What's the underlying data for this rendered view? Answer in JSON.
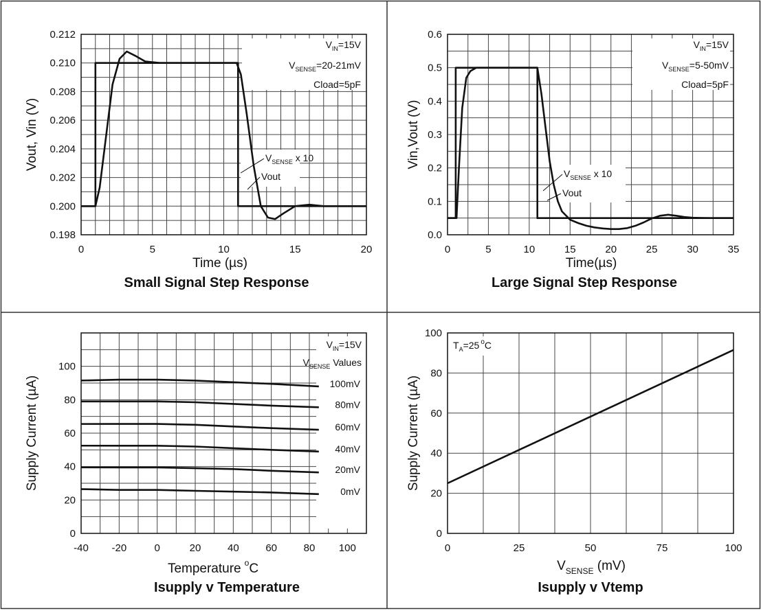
{
  "chart_data": [
    {
      "type": "line",
      "title": "Small Signal Step Response",
      "xlabel": "Time (µs)",
      "ylabel": "Vout, Vin (V)",
      "xlim": [
        0,
        20
      ],
      "ylim": [
        0.198,
        0.212
      ],
      "x_ticks": [
        "0",
        "5",
        "10",
        "15",
        "20"
      ],
      "y_ticks": [
        "0.198",
        "0.200",
        "0.202",
        "0.204",
        "0.206",
        "0.208",
        "0.210",
        "0.212"
      ],
      "grid": true,
      "annotations": [
        {
          "main": "V",
          "sub": "IN",
          "tail": "=15V"
        },
        {
          "main": "V",
          "sub": "SENSE",
          "tail": "=20-21mV"
        },
        {
          "main": "Cload=5pF",
          "sub": "",
          "tail": ""
        }
      ],
      "series_labels": [
        {
          "main": "V",
          "sub": "SENSE",
          "tail": " x 10"
        },
        {
          "main": "Vout",
          "sub": "",
          "tail": ""
        }
      ],
      "series": [
        {
          "name": "VSENSE x 10",
          "x": [
            0,
            1,
            1,
            11,
            11,
            20
          ],
          "y": [
            0.2,
            0.2,
            0.21,
            0.21,
            0.2,
            0.2
          ]
        },
        {
          "name": "Vout",
          "x": [
            0,
            1,
            1.3,
            1.7,
            2.2,
            2.7,
            3.2,
            3.8,
            4.5,
            5.5,
            7,
            9,
            10.9,
            11.2,
            11.6,
            12.1,
            12.6,
            13.1,
            13.6,
            14.2,
            15,
            16,
            17,
            20
          ],
          "y": [
            0.2,
            0.2,
            0.2013,
            0.2045,
            0.2085,
            0.2103,
            0.2108,
            0.2105,
            0.2101,
            0.21,
            0.21,
            0.21,
            0.21,
            0.2092,
            0.2065,
            0.2028,
            0.2,
            0.1992,
            0.1991,
            0.1995,
            0.2,
            0.2001,
            0.2,
            0.2
          ]
        }
      ]
    },
    {
      "type": "line",
      "title": "Large Signal Step Response",
      "xlabel": "Time(µs)",
      "ylabel": "Vin,Vout (V)",
      "xlim": [
        0,
        35
      ],
      "ylim": [
        0,
        0.6
      ],
      "x_ticks": [
        "0",
        "5",
        "10",
        "15",
        "20",
        "25",
        "30",
        "35"
      ],
      "y_ticks": [
        "0.0",
        "0.1",
        "0.2",
        "0.3",
        "0.4",
        "0.5",
        "0.6"
      ],
      "grid": true,
      "annotations": [
        {
          "main": "V",
          "sub": "IN",
          "tail": "=15V"
        },
        {
          "main": "V",
          "sub": "SENSE",
          "tail": "=5-50mV"
        },
        {
          "main": "Cload=5pF",
          "sub": "",
          "tail": ""
        }
      ],
      "series_labels": [
        {
          "main": "V",
          "sub": "SENSE",
          "tail": " x 10"
        },
        {
          "main": "Vout",
          "sub": "",
          "tail": ""
        }
      ],
      "series": [
        {
          "name": "VSENSE x 10",
          "x": [
            0,
            1,
            1,
            11,
            11,
            35
          ],
          "y": [
            0.05,
            0.05,
            0.5,
            0.5,
            0.05,
            0.05
          ]
        },
        {
          "name": "Vout",
          "x": [
            0,
            1.1,
            1.4,
            1.8,
            2.3,
            2.8,
            3.5,
            5,
            8,
            11,
            11.5,
            12,
            12.5,
            13,
            13.5,
            14,
            15,
            16,
            17,
            18,
            19,
            20,
            21,
            22,
            23,
            24,
            25,
            26,
            27,
            28,
            29,
            30,
            32,
            35
          ],
          "y": [
            0.05,
            0.05,
            0.2,
            0.38,
            0.47,
            0.49,
            0.5,
            0.5,
            0.5,
            0.5,
            0.42,
            0.32,
            0.22,
            0.15,
            0.1,
            0.07,
            0.045,
            0.035,
            0.027,
            0.022,
            0.019,
            0.017,
            0.017,
            0.02,
            0.027,
            0.037,
            0.049,
            0.057,
            0.06,
            0.057,
            0.053,
            0.051,
            0.05,
            0.05
          ]
        }
      ]
    },
    {
      "type": "line",
      "title": "Isupply v Temperature",
      "xlabel": "Temperature",
      "xlabel_unit": "C",
      "xlabel_deg": "o",
      "ylabel": "Supply Current (µA)",
      "xlim": [
        -40,
        110
      ],
      "ylim": [
        0,
        120
      ],
      "x_ticks": [
        "-40",
        "-20",
        "0",
        "20",
        "40",
        "60",
        "80",
        "100"
      ],
      "y_ticks": [
        "0",
        "20",
        "40",
        "60",
        "80",
        "100"
      ],
      "grid": true,
      "annotations": [
        {
          "main": "V",
          "sub": "IN",
          "tail": "=15V"
        },
        {
          "main": "V",
          "sub": "SENSE",
          "tail": " Values"
        }
      ],
      "series": [
        {
          "name": "100mV",
          "x": [
            -40,
            -20,
            0,
            20,
            40,
            60,
            85
          ],
          "y": [
            91.5,
            92,
            92,
            91.5,
            90.5,
            89.5,
            88
          ]
        },
        {
          "name": "80mV",
          "x": [
            -40,
            -20,
            0,
            20,
            40,
            60,
            85
          ],
          "y": [
            79,
            79,
            79,
            78.5,
            77.5,
            76.5,
            75.5
          ]
        },
        {
          "name": "60mV",
          "x": [
            -40,
            -20,
            0,
            20,
            40,
            60,
            85
          ],
          "y": [
            65.5,
            65.5,
            65.5,
            65,
            64,
            63,
            62
          ]
        },
        {
          "name": "40mV",
          "x": [
            -40,
            -20,
            0,
            20,
            40,
            60,
            85
          ],
          "y": [
            52.5,
            52.5,
            52.5,
            52,
            51,
            50,
            49
          ]
        },
        {
          "name": "20mV",
          "x": [
            -40,
            -20,
            0,
            20,
            40,
            60,
            85
          ],
          "y": [
            39.5,
            39.5,
            39.5,
            39,
            38.5,
            37.5,
            36.5
          ]
        },
        {
          "name": "0mV",
          "x": [
            -40,
            -20,
            0,
            20,
            40,
            60,
            85
          ],
          "y": [
            26.5,
            26,
            26,
            25.5,
            25,
            24.5,
            23.5
          ]
        }
      ]
    },
    {
      "type": "line",
      "title": "Isupply v Vtemp",
      "xlabel_main": "V",
      "xlabel_sub": "SENSE",
      "xlabel_tail": " (mV)",
      "ylabel": "Supply Current (µA)",
      "xlim": [
        0,
        100
      ],
      "ylim": [
        0,
        100
      ],
      "x_ticks": [
        "0",
        "25",
        "50",
        "75",
        "100"
      ],
      "y_ticks": [
        "0",
        "20",
        "40",
        "60",
        "80",
        "100"
      ],
      "grid": true,
      "annotations": [
        {
          "main": "T",
          "sub": "A",
          "tail": "=25",
          "deg": "o",
          "unit": "C"
        }
      ],
      "series": [
        {
          "name": "Isupply",
          "x": [
            0,
            100
          ],
          "y": [
            25,
            91.5
          ]
        }
      ]
    }
  ]
}
